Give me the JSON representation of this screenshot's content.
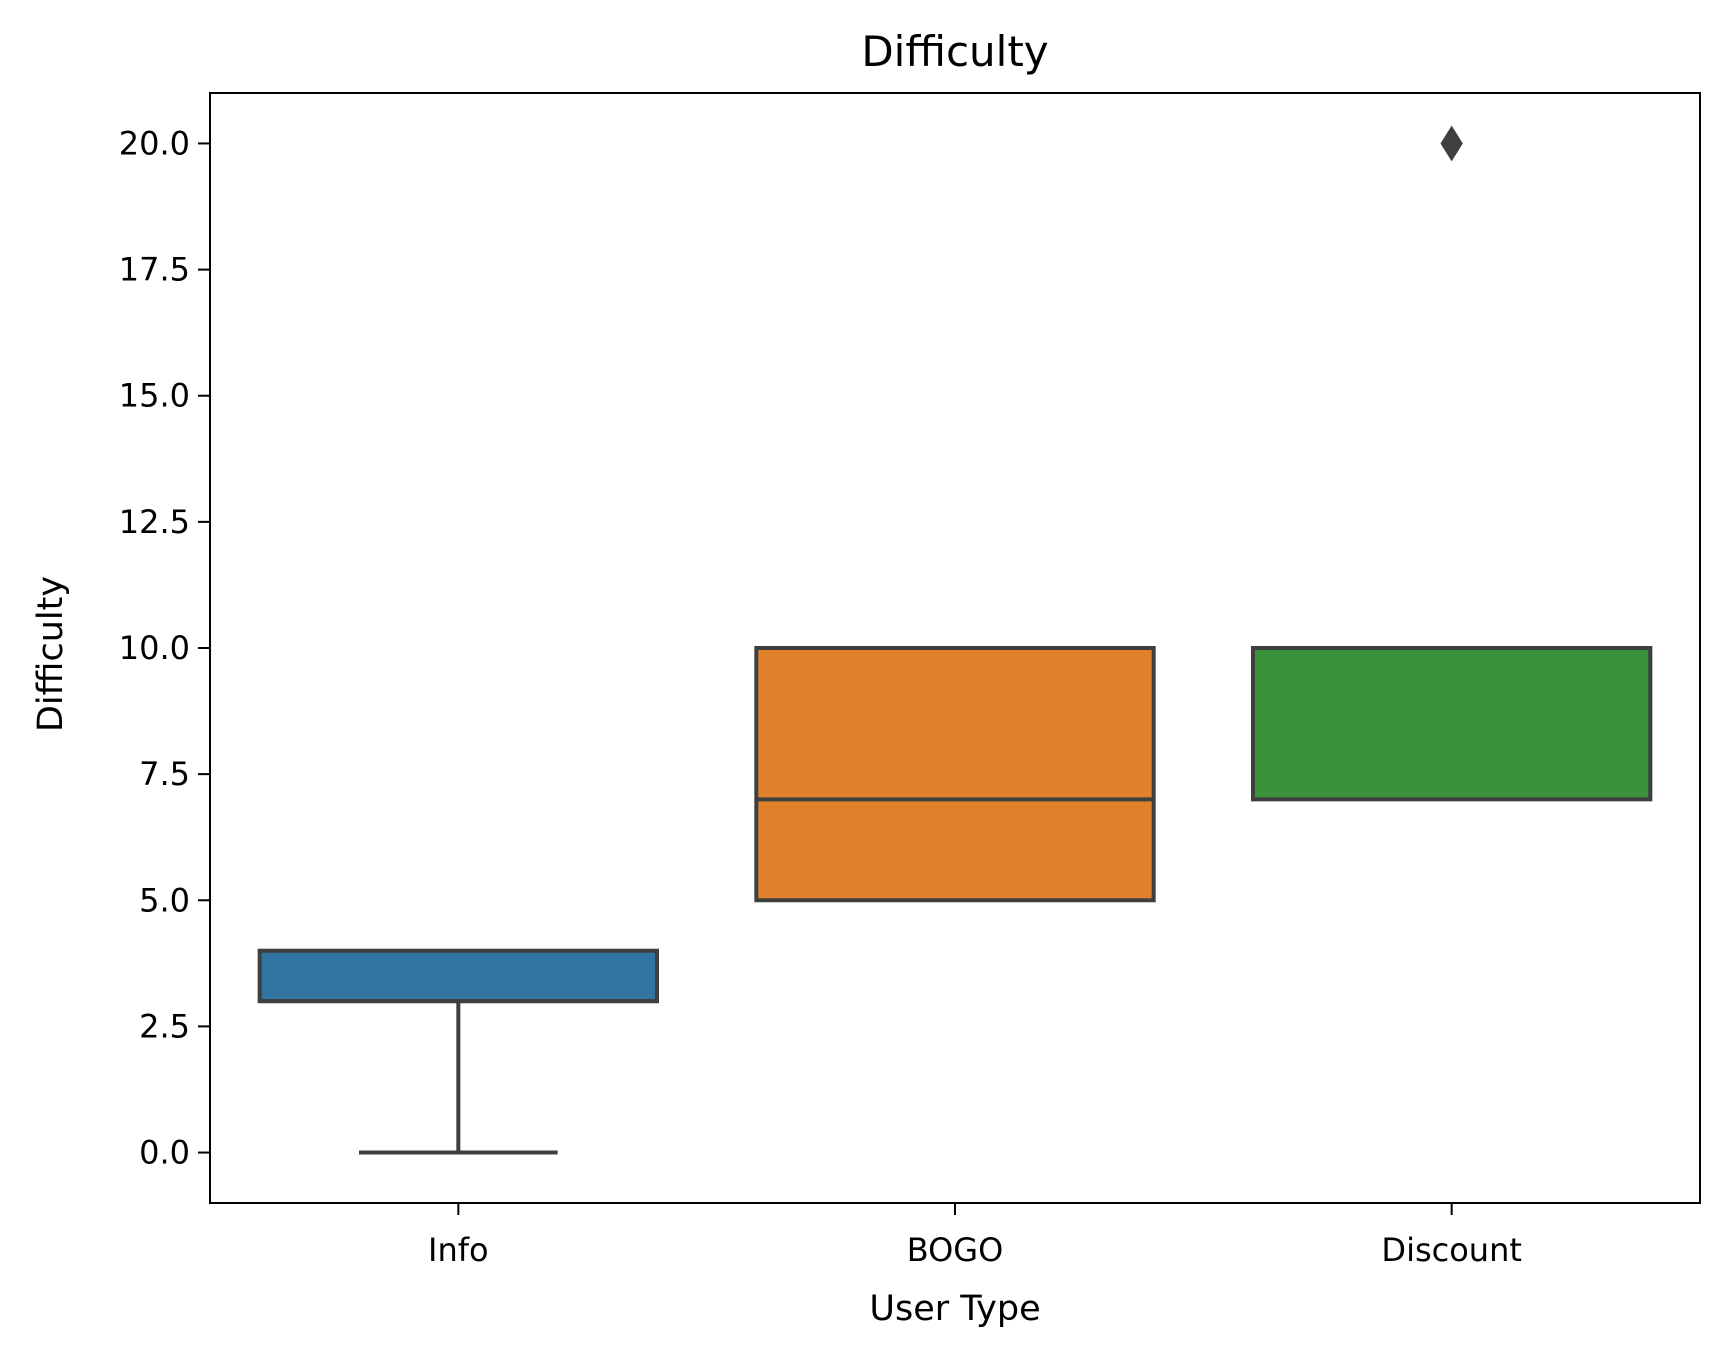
{
  "chart_data": {
    "type": "boxplot",
    "title": "Difficulty",
    "xlabel": "User Type",
    "ylabel": "Difficulty",
    "ylim": [
      -1,
      21
    ],
    "yticks": [
      "0.0",
      "2.5",
      "5.0",
      "7.5",
      "10.0",
      "12.5",
      "15.0",
      "17.5",
      "20.0"
    ],
    "categories": [
      "Info",
      "BOGO",
      "Discount"
    ],
    "boxes": [
      {
        "category": "Info",
        "q1": 3,
        "median": 3,
        "q3": 4,
        "whisker_low": 0,
        "whisker_high": 4,
        "outliers": [],
        "color": "#3274a1"
      },
      {
        "category": "BOGO",
        "q1": 5,
        "median": 7,
        "q3": 10,
        "whisker_low": 5,
        "whisker_high": 10,
        "outliers": [],
        "color": "#e1812c"
      },
      {
        "category": "Discount",
        "q1": 7,
        "median": 10,
        "q3": 10,
        "whisker_low": 7,
        "whisker_high": 10,
        "outliers": [
          20
        ],
        "color": "#3a923a"
      }
    ],
    "edge_color": "#3f3f3f",
    "grid": false,
    "legend": "none"
  }
}
